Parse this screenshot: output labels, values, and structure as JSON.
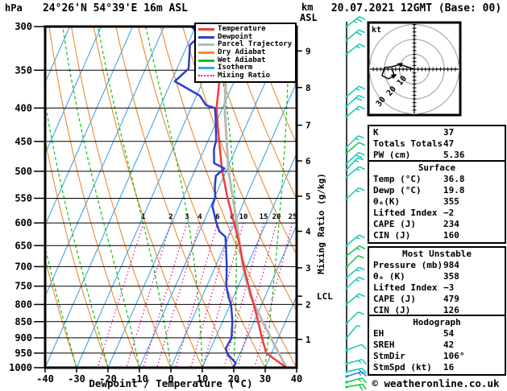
{
  "header": {
    "pressure_unit": "hPa",
    "station_title": "24°26'N 54°39'E 16m ASL",
    "altitude_unit_top": "km",
    "altitude_unit_bottom": "ASL",
    "run_title": "20.07.2021 12GMT (Base: 00)"
  },
  "legend": {
    "items": [
      {
        "label": "Temperature",
        "color": "#f03c3c",
        "style": "solid"
      },
      {
        "label": "Dewpoint",
        "color": "#2840d0",
        "style": "solid"
      },
      {
        "label": "Parcel Trajectory",
        "color": "#b8b8b8",
        "style": "solid"
      },
      {
        "label": "Dry Adiabat",
        "color": "#ec8b33",
        "style": "solid"
      },
      {
        "label": "Wet Adiabat",
        "color": "#0cc30c",
        "style": "solid"
      },
      {
        "label": "Isotherm",
        "color": "#3fa5ea",
        "style": "solid"
      },
      {
        "label": "Mixing Ratio",
        "color": "#e8148c",
        "style": "dotted"
      }
    ]
  },
  "axes": {
    "pressure_ticks": [
      300,
      350,
      400,
      450,
      500,
      550,
      600,
      650,
      700,
      750,
      800,
      850,
      900,
      950,
      1000
    ],
    "temperature_ticks": [
      -40,
      -30,
      -20,
      -10,
      0,
      10,
      20,
      30,
      40
    ],
    "x_axis_label": "Dewpoint / Temperature (°C)",
    "km_ticks": [
      9,
      8,
      7,
      6,
      5,
      4,
      3,
      2,
      1
    ],
    "mixing_ratio_axis_label": "Mixing Ratio (g/kg)",
    "lcl_label": "LCL"
  },
  "chart_data": {
    "type": "skew-t-log-p",
    "pressure_range_hpa": [
      300,
      1000
    ],
    "temperature_range_c": [
      -40,
      40
    ],
    "mixing_ratio_lines_g_kg": [
      1,
      2,
      3,
      4,
      6,
      8,
      10,
      15,
      20,
      25
    ],
    "lcl_pressure_hpa": 777,
    "series": [
      {
        "name": "Temperature",
        "color": "#f03c3c",
        "points": [
          [
            1000,
            36.8
          ],
          [
            975,
            32.6
          ],
          [
            950,
            28.3
          ],
          [
            900,
            24.8
          ],
          [
            850,
            21.3
          ],
          [
            800,
            17.5
          ],
          [
            750,
            13.3
          ],
          [
            700,
            9.0
          ],
          [
            650,
            4.8
          ],
          [
            600,
            -0.2
          ],
          [
            550,
            -5.7
          ],
          [
            500,
            -11.2
          ],
          [
            450,
            -16.4
          ],
          [
            400,
            -21.9
          ],
          [
            350,
            -25.9
          ],
          [
            330,
            -27.3
          ],
          [
            300,
            -30.7
          ]
        ]
      },
      {
        "name": "Dewpoint",
        "color": "#2840d0",
        "points": [
          [
            1000,
            19.8
          ],
          [
            984,
            20.0
          ],
          [
            953,
            16.1
          ],
          [
            935,
            14.8
          ],
          [
            900,
            15.1
          ],
          [
            850,
            13.1
          ],
          [
            800,
            10.3
          ],
          [
            780,
            8.5
          ],
          [
            750,
            6.2
          ],
          [
            700,
            3.6
          ],
          [
            650,
            0.4
          ],
          [
            630,
            -1.0
          ],
          [
            618,
            -3.7
          ],
          [
            600,
            -5.8
          ],
          [
            565,
            -9.5
          ],
          [
            548,
            -9.8
          ],
          [
            528,
            -11.4
          ],
          [
            508,
            -12.6
          ],
          [
            495,
            -10.9
          ],
          [
            486,
            -14.9
          ],
          [
            463,
            -16.9
          ],
          [
            448,
            -17.5
          ],
          [
            413,
            -20.9
          ],
          [
            400,
            -22.4
          ],
          [
            396,
            -25.6
          ],
          [
            383,
            -28.9
          ],
          [
            364,
            -38.9
          ],
          [
            348,
            -36.3
          ],
          [
            320,
            -39.2
          ],
          [
            310,
            -37.2
          ],
          [
            300,
            -41.3
          ]
        ]
      },
      {
        "name": "Parcel Trajectory",
        "color": "#b8b8b8",
        "points": [
          [
            1000,
            36.8
          ],
          [
            950,
            32.3
          ],
          [
            900,
            27.6
          ],
          [
            850,
            22.7
          ],
          [
            800,
            17.7
          ],
          [
            777,
            15.3
          ],
          [
            700,
            8.7
          ],
          [
            600,
            0.7
          ],
          [
            500,
            -9.2
          ],
          [
            400,
            -19.3
          ],
          [
            300,
            -29.5
          ]
        ]
      }
    ]
  },
  "hodograph": {
    "unit_label": "kt",
    "ring_radii_kt": [
      10,
      20,
      30
    ],
    "ring_labels": [
      "10",
      "20",
      "30"
    ],
    "trace_kt": [
      [
        0,
        0
      ],
      [
        -9.7,
        3.2
      ],
      [
        -15.1,
        1.6
      ],
      [
        -20,
        1.1
      ],
      [
        -21.6,
        -4.3
      ],
      [
        -17.3,
        -6.5
      ],
      [
        -13.5,
        -4.3
      ],
      [
        -14.6,
        -0.5
      ]
    ],
    "arrow_vertices": [
      1,
      6
    ]
  },
  "panels": {
    "indices": {
      "rows": [
        {
          "label": "K",
          "value": "37"
        },
        {
          "label": "Totals Totals",
          "value": "47"
        },
        {
          "label": "PW (cm)",
          "value": "5.36"
        }
      ]
    },
    "surface": {
      "title": "Surface",
      "rows": [
        {
          "label": "Temp (°C)",
          "value": "36.8"
        },
        {
          "label": "Dewp (°C)",
          "value": "19.8"
        },
        {
          "label": "θₑ(K)",
          "value": "355"
        },
        {
          "label": "Lifted Index",
          "value": "−2"
        },
        {
          "label": "CAPE (J)",
          "value": "234"
        },
        {
          "label": "CIN (J)",
          "value": "160"
        }
      ]
    },
    "most_unstable": {
      "title": "Most Unstable",
      "rows": [
        {
          "label": "Pressure (mb)",
          "value": "984"
        },
        {
          "label": "θₑ (K)",
          "value": "358"
        },
        {
          "label": "Lifted Index",
          "value": "−3"
        },
        {
          "label": "CAPE (J)",
          "value": "479"
        },
        {
          "label": "CIN (J)",
          "value": "126"
        }
      ]
    },
    "hodograph_stats": {
      "title": "Hodograph",
      "rows": [
        {
          "label": "EH",
          "value": "54"
        },
        {
          "label": "SREH",
          "value": "42"
        },
        {
          "label": "StmDir",
          "value": "106°"
        },
        {
          "label": "StmSpd (kt)",
          "value": "16"
        }
      ]
    }
  },
  "wind_barbs": {
    "colors": {
      "teal": "#14c8b4",
      "green": "#0cc848",
      "blue": "#2a82e0"
    },
    "barbs": [
      [
        33,
        "teal",
        2,
        1,
        38
      ],
      [
        50,
        "teal",
        2,
        0,
        40
      ],
      [
        67,
        "teal",
        1,
        1,
        38
      ],
      [
        120,
        "teal",
        1,
        1,
        40
      ],
      [
        132,
        "teal",
        2,
        0,
        42
      ],
      [
        145,
        "teal",
        1,
        1,
        40
      ],
      [
        183,
        "teal",
        1,
        1,
        45
      ],
      [
        190,
        "green",
        1,
        0,
        40
      ],
      [
        203,
        "teal",
        2,
        0,
        42
      ],
      [
        211,
        "teal",
        1,
        1,
        48
      ],
      [
        220,
        "teal",
        1,
        1,
        40
      ],
      [
        247,
        "teal",
        1,
        1,
        42
      ],
      [
        305,
        "teal",
        1,
        1,
        40
      ],
      [
        318,
        "green",
        1,
        1,
        38
      ],
      [
        332,
        "green",
        1,
        0,
        45
      ],
      [
        345,
        "teal",
        1,
        1,
        40
      ],
      [
        358,
        "teal",
        1,
        1,
        42
      ],
      [
        378,
        "teal",
        1,
        1,
        40
      ],
      [
        402,
        "teal",
        1,
        0,
        45
      ],
      [
        420,
        "teal",
        0,
        1,
        50
      ],
      [
        435,
        "teal",
        1,
        0,
        20
      ],
      [
        452,
        "teal",
        1,
        1,
        15
      ],
      [
        462,
        "teal",
        2,
        0,
        12
      ],
      [
        468,
        "blue",
        1,
        1,
        18
      ],
      [
        475,
        "green",
        1,
        1,
        15
      ],
      [
        481,
        "green",
        2,
        0,
        10
      ]
    ]
  },
  "footer": {
    "copyright": "© weatheronline.co.uk"
  }
}
